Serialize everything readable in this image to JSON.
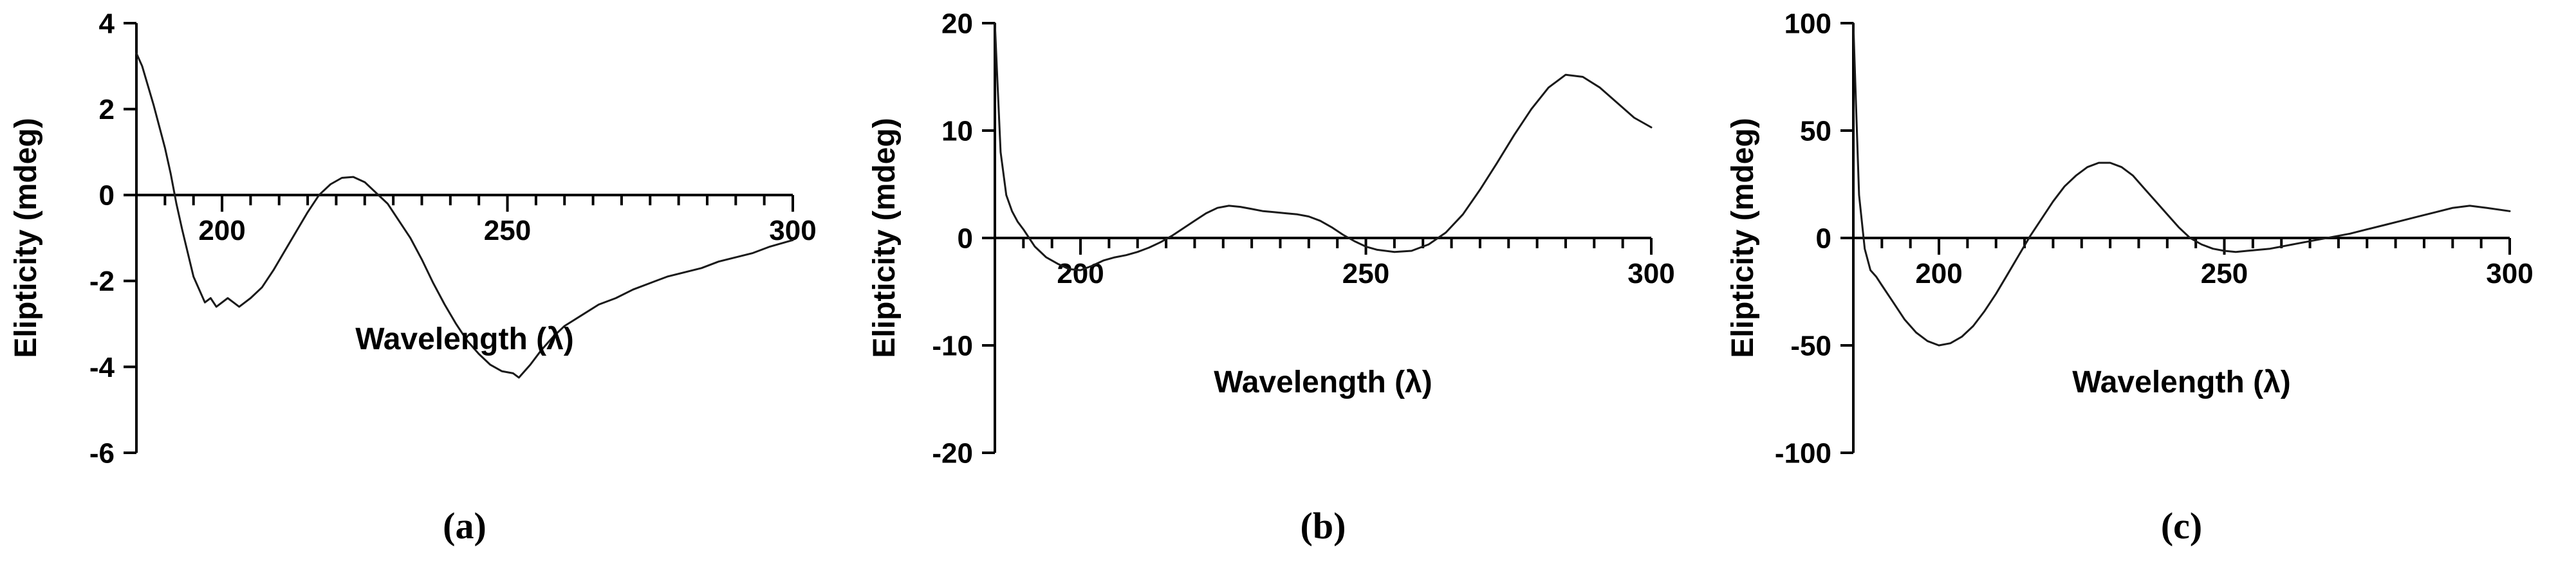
{
  "colors": {
    "line": "#1a1a1a",
    "text": "#000000",
    "background": "#ffffff"
  },
  "chart_data": [
    {
      "type": "line",
      "caption": "(a)",
      "xlabel": "Wavelength (λ)",
      "ylabel": "Elipticity (mdeg)",
      "xlim": [
        185,
        300
      ],
      "ylim": [
        -6,
        4
      ],
      "xticks": [
        200,
        250,
        300
      ],
      "yticks": [
        -6,
        -4,
        -2,
        0,
        2,
        4
      ],
      "grid": false,
      "legend": null,
      "x": [
        185,
        186,
        188,
        190,
        191,
        192,
        193,
        195,
        197,
        198,
        199,
        201,
        202,
        203,
        205,
        207,
        209,
        211,
        213,
        215,
        217,
        219,
        221,
        223,
        225,
        227,
        229,
        231,
        233,
        235,
        237,
        239,
        241,
        243,
        245,
        247,
        249,
        251,
        252,
        254,
        256,
        258,
        260,
        263,
        266,
        269,
        272,
        275,
        278,
        281,
        284,
        287,
        290,
        293,
        296,
        300
      ],
      "y": [
        3.3,
        3.0,
        2.1,
        1.1,
        0.5,
        -0.2,
        -0.8,
        -1.9,
        -2.5,
        -2.4,
        -2.6,
        -2.4,
        -2.5,
        -2.6,
        -2.4,
        -2.15,
        -1.75,
        -1.3,
        -0.85,
        -0.4,
        0.0,
        0.25,
        0.4,
        0.42,
        0.3,
        0.05,
        -0.2,
        -0.6,
        -1.0,
        -1.5,
        -2.05,
        -2.55,
        -3.0,
        -3.4,
        -3.7,
        -3.95,
        -4.1,
        -4.15,
        -4.25,
        -3.95,
        -3.6,
        -3.3,
        -3.05,
        -2.8,
        -2.55,
        -2.4,
        -2.2,
        -2.05,
        -1.9,
        -1.8,
        -1.7,
        -1.55,
        -1.45,
        -1.35,
        -1.2,
        -1.05
      ]
    },
    {
      "type": "line",
      "caption": "(b)",
      "xlabel": "Wavelength (λ)",
      "ylabel": "Elipticity (mdeg)",
      "xlim": [
        185,
        300
      ],
      "ylim": [
        -20,
        20
      ],
      "xticks": [
        200,
        250,
        300
      ],
      "yticks": [
        -20,
        -10,
        0,
        10,
        20
      ],
      "grid": false,
      "legend": null,
      "x": [
        185,
        185.5,
        186,
        187,
        188,
        189,
        190,
        191,
        192,
        194,
        196,
        198,
        200,
        202,
        204,
        206,
        208,
        210,
        212,
        214,
        216,
        218,
        220,
        222,
        224,
        226,
        228,
        230,
        232,
        234,
        236,
        238,
        240,
        242,
        244,
        246,
        248,
        250,
        252,
        255,
        258,
        261,
        264,
        267,
        270,
        273,
        276,
        279,
        282,
        285,
        288,
        291,
        294,
        297,
        300
      ],
      "y": [
        20,
        14,
        8,
        4,
        2.5,
        1.5,
        0.8,
        0.0,
        -0.8,
        -1.8,
        -2.4,
        -2.9,
        -3.0,
        -2.6,
        -2.1,
        -1.8,
        -1.6,
        -1.3,
        -0.9,
        -0.4,
        0.2,
        0.9,
        1.6,
        2.3,
        2.8,
        3.0,
        2.9,
        2.7,
        2.5,
        2.4,
        2.3,
        2.2,
        2.0,
        1.6,
        1.0,
        0.3,
        -0.3,
        -0.8,
        -1.1,
        -1.3,
        -1.2,
        -0.6,
        0.5,
        2.2,
        4.5,
        7.0,
        9.6,
        12.0,
        14.0,
        15.2,
        15.0,
        14.0,
        12.6,
        11.2,
        10.3
      ]
    },
    {
      "type": "line",
      "caption": "(c)",
      "xlabel": "Wavelength (λ)",
      "ylabel": "Elipticity (mdeg)",
      "xlim": [
        185,
        300
      ],
      "ylim": [
        -100,
        100
      ],
      "xticks": [
        200,
        250,
        300
      ],
      "yticks": [
        -100,
        -50,
        0,
        50,
        100
      ],
      "grid": false,
      "legend": null,
      "x": [
        185,
        185.5,
        186,
        187,
        188,
        189,
        190,
        192,
        194,
        196,
        198,
        200,
        202,
        204,
        206,
        208,
        210,
        212,
        214,
        216,
        218,
        220,
        222,
        224,
        226,
        228,
        230,
        232,
        234,
        236,
        238,
        240,
        242,
        244,
        246,
        248,
        250,
        252,
        254,
        256,
        258,
        260,
        263,
        266,
        269,
        272,
        275,
        278,
        281,
        284,
        287,
        290,
        293,
        296,
        300
      ],
      "y": [
        100,
        60,
        20,
        -5,
        -15,
        -18,
        -22,
        -30,
        -38,
        -44,
        -48,
        -50,
        -49,
        -46,
        -41,
        -34,
        -26,
        -17,
        -8,
        1,
        9,
        17,
        24,
        29,
        33,
        35,
        35,
        33,
        29,
        23,
        17,
        11,
        5,
        0,
        -3,
        -5,
        -6,
        -6.5,
        -6,
        -5.5,
        -5,
        -4,
        -2.5,
        -1,
        0.5,
        2,
        4,
        6,
        8,
        10,
        12,
        14,
        15,
        14,
        12.5
      ]
    }
  ]
}
